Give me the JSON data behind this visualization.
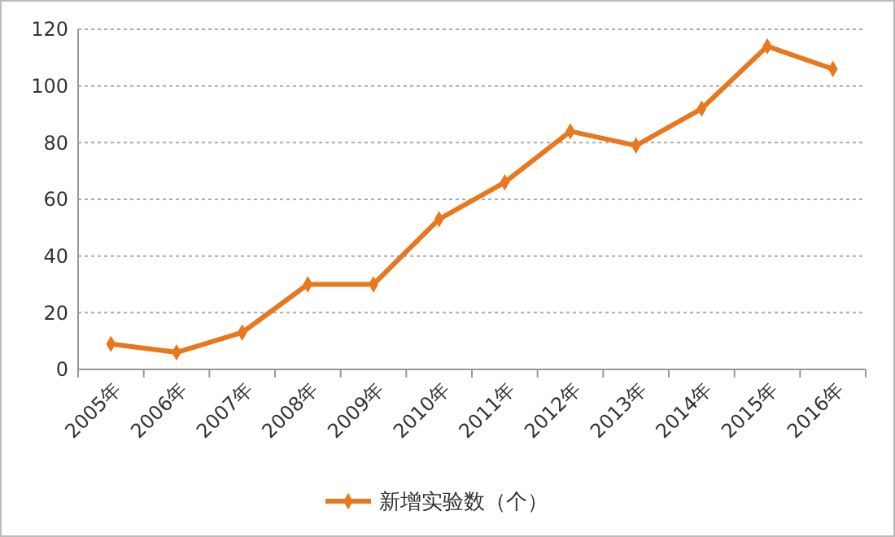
{
  "chart_data": {
    "type": "line",
    "categories": [
      "2005年",
      "2006年",
      "2007年",
      "2008年",
      "2009年",
      "2010年",
      "2011年",
      "2012年",
      "2013年",
      "2014年",
      "2015年",
      "2016年"
    ],
    "series": [
      {
        "name": "新增实验数（个）",
        "color": "#e8781e",
        "values": [
          9,
          6,
          13,
          30,
          30,
          53,
          66,
          84,
          79,
          92,
          114,
          106
        ]
      }
    ],
    "ylim": [
      0,
      120
    ],
    "yticks": [
      0,
      20,
      40,
      60,
      80,
      100,
      120
    ],
    "grid": "y",
    "legend": "bottom",
    "marker": "diamond",
    "line_style": "solid"
  }
}
